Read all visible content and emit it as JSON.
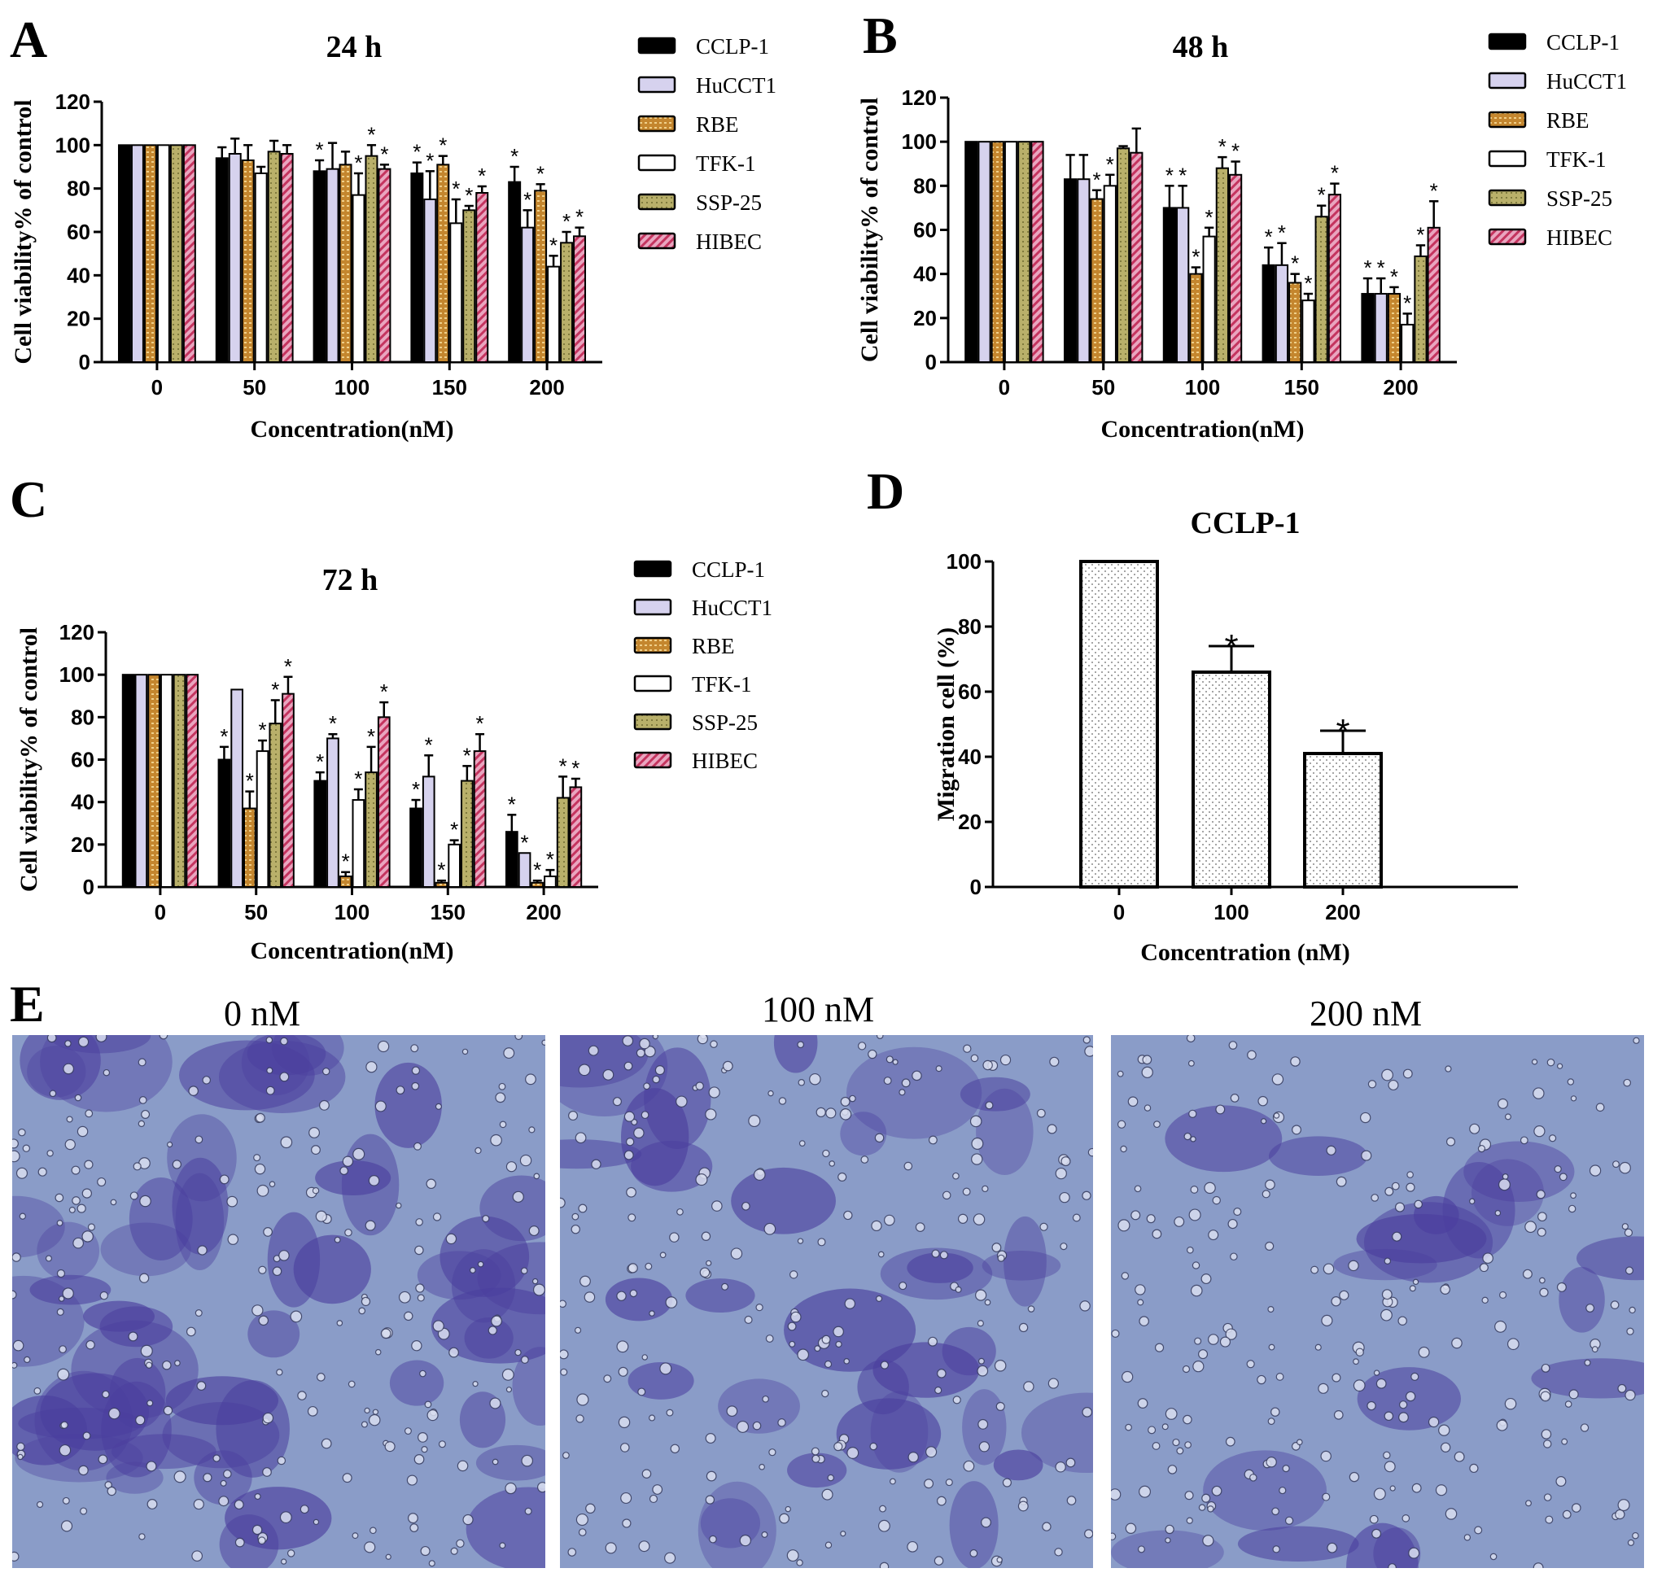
{
  "colors": {
    "CCLP-1": "#000000",
    "HuCCT1": "#d6d2ee",
    "RBE": "#c4862e",
    "TFK-1": "#ffffff",
    "SSP-25": "#b9b06a",
    "HIBEC": "#d55b86",
    "micrograph_bg": "#8a9cc8",
    "micrograph_stain": "#4b3f9e"
  },
  "panel_E": {
    "letter": "E",
    "images": [
      {
        "label": "0 nM",
        "stain_density": 0.9
      },
      {
        "label": "100 nM",
        "stain_density": 0.55
      },
      {
        "label": "200 nM",
        "stain_density": 0.3
      }
    ]
  },
  "chart_data": [
    {
      "letter": "A",
      "type": "bar",
      "title": "24 h",
      "xlabel": "Concentration(nM)",
      "ylabel": "Cell viability% of control",
      "ylim": [
        0,
        120
      ],
      "yticks": [
        0,
        20,
        40,
        60,
        80,
        100,
        120
      ],
      "categories": [
        "0",
        "50",
        "100",
        "150",
        "200"
      ],
      "legend": "right",
      "series": [
        {
          "name": "CCLP-1",
          "values": [
            100,
            94,
            88,
            87,
            83
          ],
          "errors": [
            0,
            5,
            5,
            5,
            7
          ],
          "sig": [
            false,
            false,
            true,
            true,
            true
          ]
        },
        {
          "name": "HuCCT1",
          "values": [
            100,
            96,
            89,
            75,
            62
          ],
          "errors": [
            0,
            7,
            12,
            13,
            8
          ],
          "sig": [
            false,
            false,
            false,
            true,
            true
          ]
        },
        {
          "name": "RBE",
          "values": [
            100,
            93,
            91,
            91,
            79
          ],
          "errors": [
            0,
            7,
            6,
            4,
            3
          ],
          "sig": [
            false,
            false,
            false,
            true,
            true
          ]
        },
        {
          "name": "TFK-1",
          "values": [
            100,
            87,
            77,
            64,
            44
          ],
          "errors": [
            0,
            3,
            10,
            11,
            5
          ],
          "sig": [
            false,
            false,
            true,
            true,
            true
          ]
        },
        {
          "name": "SSP-25",
          "values": [
            100,
            97,
            95,
            70,
            55
          ],
          "errors": [
            0,
            5,
            5,
            2,
            5
          ],
          "sig": [
            false,
            false,
            true,
            true,
            true
          ]
        },
        {
          "name": "HIBEC",
          "values": [
            100,
            96,
            89,
            78,
            58
          ],
          "errors": [
            0,
            4,
            2,
            3,
            4
          ],
          "sig": [
            false,
            false,
            true,
            true,
            true
          ]
        }
      ]
    },
    {
      "letter": "B",
      "type": "bar",
      "title": "48 h",
      "xlabel": "Concentration(nM)",
      "ylabel": "Cell viability% of control",
      "ylim": [
        0,
        120
      ],
      "yticks": [
        0,
        20,
        40,
        60,
        80,
        100,
        120
      ],
      "categories": [
        "0",
        "50",
        "100",
        "150",
        "200"
      ],
      "legend": "right",
      "series": [
        {
          "name": "CCLP-1",
          "values": [
            100,
            83,
            70,
            44,
            31
          ],
          "errors": [
            0,
            11,
            10,
            8,
            7
          ],
          "sig": [
            false,
            false,
            true,
            true,
            true
          ]
        },
        {
          "name": "HuCCT1",
          "values": [
            100,
            83,
            70,
            44,
            31
          ],
          "errors": [
            0,
            11,
            10,
            10,
            7
          ],
          "sig": [
            false,
            false,
            true,
            true,
            true
          ]
        },
        {
          "name": "RBE",
          "values": [
            100,
            74,
            40,
            36,
            31
          ],
          "errors": [
            0,
            4,
            3,
            4,
            3
          ],
          "sig": [
            false,
            true,
            true,
            true,
            true
          ]
        },
        {
          "name": "TFK-1",
          "values": [
            100,
            80,
            57,
            28,
            17
          ],
          "errors": [
            0,
            5,
            4,
            3,
            5
          ],
          "sig": [
            false,
            true,
            true,
            true,
            true
          ]
        },
        {
          "name": "SSP-25",
          "values": [
            100,
            97,
            88,
            66,
            48
          ],
          "errors": [
            0,
            1,
            5,
            5,
            5
          ],
          "sig": [
            false,
            false,
            true,
            true,
            true
          ]
        },
        {
          "name": "HIBEC",
          "values": [
            100,
            95,
            85,
            76,
            61
          ],
          "errors": [
            0,
            11,
            6,
            5,
            12
          ],
          "sig": [
            false,
            false,
            true,
            true,
            true
          ]
        }
      ]
    },
    {
      "letter": "C",
      "type": "bar",
      "title": "72 h",
      "xlabel": "Concentration(nM)",
      "ylabel": "Cell viability% of control",
      "ylim": [
        0,
        120
      ],
      "yticks": [
        0,
        20,
        40,
        60,
        80,
        100,
        120
      ],
      "categories": [
        "0",
        "50",
        "100",
        "150",
        "200"
      ],
      "legend": "right",
      "series": [
        {
          "name": "CCLP-1",
          "values": [
            100,
            60,
            50,
            37,
            26
          ],
          "errors": [
            0,
            6,
            4,
            4,
            8
          ],
          "sig": [
            false,
            true,
            true,
            true,
            true
          ]
        },
        {
          "name": "HuCCT1",
          "values": [
            100,
            93,
            70,
            52,
            16
          ],
          "errors": [
            0,
            0,
            2,
            10,
            0
          ],
          "sig": [
            false,
            false,
            true,
            true,
            true
          ]
        },
        {
          "name": "RBE",
          "values": [
            100,
            37,
            5,
            2,
            2
          ],
          "errors": [
            0,
            8,
            2,
            1,
            1
          ],
          "sig": [
            false,
            true,
            true,
            true,
            true
          ]
        },
        {
          "name": "TFK-1",
          "values": [
            100,
            64,
            41,
            20,
            5
          ],
          "errors": [
            0,
            5,
            5,
            2,
            3
          ],
          "sig": [
            false,
            true,
            true,
            true,
            true
          ]
        },
        {
          "name": "SSP-25",
          "values": [
            100,
            77,
            54,
            50,
            42
          ],
          "errors": [
            0,
            11,
            12,
            7,
            10
          ],
          "sig": [
            false,
            true,
            true,
            true,
            true
          ]
        },
        {
          "name": "HIBEC",
          "values": [
            100,
            91,
            80,
            64,
            47
          ],
          "errors": [
            0,
            8,
            7,
            8,
            4
          ],
          "sig": [
            false,
            true,
            true,
            true,
            true
          ]
        }
      ]
    },
    {
      "letter": "D",
      "type": "bar",
      "title": "CCLP-1",
      "xlabel": "Concentration (nM)",
      "ylabel": "Migration cell (%)",
      "ylim": [
        0,
        100
      ],
      "yticks": [
        0,
        20,
        40,
        60,
        80,
        100
      ],
      "categories": [
        "0",
        "100",
        "200"
      ],
      "values": [
        100,
        66,
        41
      ],
      "errors": [
        0,
        8,
        7
      ],
      "sig": [
        false,
        true,
        true
      ]
    }
  ]
}
